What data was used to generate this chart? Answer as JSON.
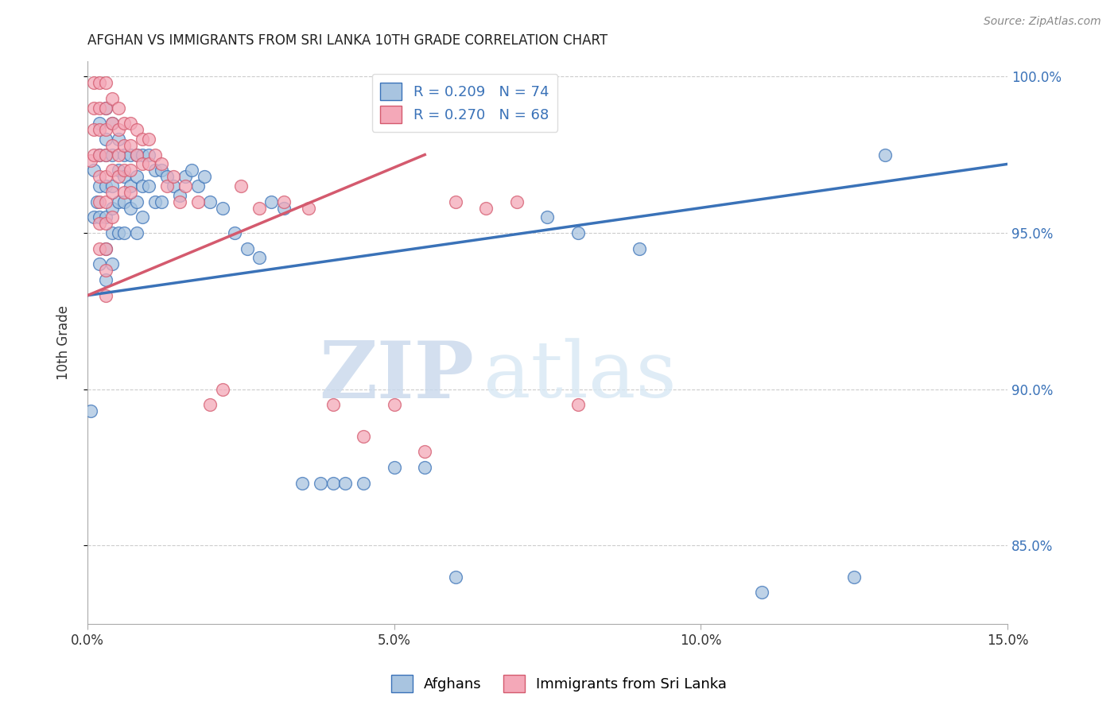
{
  "title": "AFGHAN VS IMMIGRANTS FROM SRI LANKA 10TH GRADE CORRELATION CHART",
  "source": "Source: ZipAtlas.com",
  "xlabel": "",
  "ylabel": "10th Grade",
  "xlim": [
    0.0,
    0.15
  ],
  "ylim": [
    0.825,
    1.005
  ],
  "yticks": [
    0.85,
    0.9,
    0.95,
    1.0
  ],
  "ytick_labels": [
    "85.0%",
    "90.0%",
    "95.0%",
    "100.0%"
  ],
  "xticks": [
    0.0,
    0.05,
    0.1,
    0.15
  ],
  "xtick_labels": [
    "0.0%",
    "5.0%",
    "10.0%",
    "15.0%"
  ],
  "blue_R": 0.209,
  "blue_N": 74,
  "pink_R": 0.27,
  "pink_N": 68,
  "blue_color": "#a8c4e0",
  "pink_color": "#f4a8b8",
  "blue_line_color": "#3a72b8",
  "pink_line_color": "#d45a6e",
  "legend_label_blue": "Afghans",
  "legend_label_pink": "Immigrants from Sri Lanka",
  "blue_line_x": [
    0.0,
    0.15
  ],
  "blue_line_y": [
    0.93,
    0.972
  ],
  "pink_line_x": [
    0.0,
    0.055
  ],
  "pink_line_y": [
    0.93,
    0.975
  ],
  "blue_x": [
    0.0005,
    0.001,
    0.001,
    0.0015,
    0.002,
    0.002,
    0.002,
    0.002,
    0.002,
    0.003,
    0.003,
    0.003,
    0.003,
    0.003,
    0.003,
    0.003,
    0.004,
    0.004,
    0.004,
    0.004,
    0.004,
    0.004,
    0.005,
    0.005,
    0.005,
    0.005,
    0.006,
    0.006,
    0.006,
    0.006,
    0.007,
    0.007,
    0.007,
    0.008,
    0.008,
    0.008,
    0.008,
    0.009,
    0.009,
    0.009,
    0.01,
    0.01,
    0.011,
    0.011,
    0.012,
    0.012,
    0.013,
    0.014,
    0.015,
    0.016,
    0.017,
    0.018,
    0.019,
    0.02,
    0.022,
    0.024,
    0.026,
    0.028,
    0.03,
    0.032,
    0.035,
    0.038,
    0.04,
    0.042,
    0.045,
    0.05,
    0.055,
    0.06,
    0.075,
    0.08,
    0.09,
    0.11,
    0.125,
    0.13
  ],
  "blue_y": [
    0.893,
    0.955,
    0.97,
    0.96,
    0.985,
    0.975,
    0.965,
    0.955,
    0.94,
    0.99,
    0.98,
    0.975,
    0.965,
    0.955,
    0.945,
    0.935,
    0.985,
    0.975,
    0.965,
    0.958,
    0.95,
    0.94,
    0.98,
    0.97,
    0.96,
    0.95,
    0.975,
    0.968,
    0.96,
    0.95,
    0.975,
    0.965,
    0.958,
    0.975,
    0.968,
    0.96,
    0.95,
    0.975,
    0.965,
    0.955,
    0.975,
    0.965,
    0.97,
    0.96,
    0.97,
    0.96,
    0.968,
    0.965,
    0.962,
    0.968,
    0.97,
    0.965,
    0.968,
    0.96,
    0.958,
    0.95,
    0.945,
    0.942,
    0.96,
    0.958,
    0.87,
    0.87,
    0.87,
    0.87,
    0.87,
    0.875,
    0.875,
    0.84,
    0.955,
    0.95,
    0.945,
    0.835,
    0.84,
    0.975
  ],
  "pink_x": [
    0.0005,
    0.001,
    0.001,
    0.001,
    0.001,
    0.002,
    0.002,
    0.002,
    0.002,
    0.002,
    0.002,
    0.002,
    0.002,
    0.003,
    0.003,
    0.003,
    0.003,
    0.003,
    0.003,
    0.003,
    0.003,
    0.003,
    0.003,
    0.004,
    0.004,
    0.004,
    0.004,
    0.004,
    0.004,
    0.005,
    0.005,
    0.005,
    0.005,
    0.006,
    0.006,
    0.006,
    0.006,
    0.007,
    0.007,
    0.007,
    0.007,
    0.008,
    0.008,
    0.009,
    0.009,
    0.01,
    0.01,
    0.011,
    0.012,
    0.013,
    0.014,
    0.015,
    0.016,
    0.018,
    0.02,
    0.022,
    0.025,
    0.028,
    0.032,
    0.036,
    0.04,
    0.045,
    0.05,
    0.055,
    0.06,
    0.065,
    0.07,
    0.08
  ],
  "pink_y": [
    0.973,
    0.998,
    0.99,
    0.983,
    0.975,
    0.998,
    0.99,
    0.983,
    0.975,
    0.968,
    0.96,
    0.953,
    0.945,
    0.998,
    0.99,
    0.983,
    0.975,
    0.968,
    0.96,
    0.953,
    0.945,
    0.938,
    0.93,
    0.993,
    0.985,
    0.978,
    0.97,
    0.963,
    0.955,
    0.99,
    0.983,
    0.975,
    0.968,
    0.985,
    0.978,
    0.97,
    0.963,
    0.985,
    0.978,
    0.97,
    0.963,
    0.983,
    0.975,
    0.98,
    0.972,
    0.98,
    0.972,
    0.975,
    0.972,
    0.965,
    0.968,
    0.96,
    0.965,
    0.96,
    0.895,
    0.9,
    0.965,
    0.958,
    0.96,
    0.958,
    0.895,
    0.885,
    0.895,
    0.88,
    0.96,
    0.958,
    0.96,
    0.895
  ],
  "watermark_zip": "ZIP",
  "watermark_atlas": "atlas",
  "background_color": "#ffffff",
  "grid_color": "#cccccc"
}
